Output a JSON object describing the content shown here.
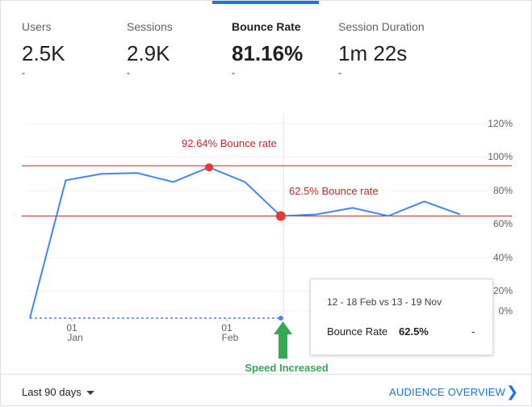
{
  "metrics": [
    {
      "label": "Users",
      "value": "2.5K",
      "delta": "-"
    },
    {
      "label": "Sessions",
      "value": "2.9K",
      "delta": "-"
    },
    {
      "label": "Bounce Rate",
      "value": "81.16%",
      "delta": "-"
    },
    {
      "label": "Session Duration",
      "value": "1m 22s",
      "delta": "-"
    }
  ],
  "active_metric": "Bounce Rate",
  "chart_data": {
    "type": "line",
    "y_ticks": [
      "120%",
      "100%",
      "80%",
      "60%",
      "40%",
      "20%",
      "0%"
    ],
    "ylim": [
      0,
      120
    ],
    "x_tick_labels": [
      {
        "day": "01",
        "month": "Jan"
      },
      {
        "day": "01",
        "month": "Feb"
      }
    ],
    "series": [
      {
        "values": [
          0,
          85,
          89,
          89.5,
          84,
          93,
          84,
          63,
          64,
          68,
          63,
          72,
          64
        ],
        "color": "#4285f4"
      },
      {
        "values": [
          0,
          0,
          0,
          0,
          0,
          0,
          0,
          0
        ],
        "color": "#4285f4",
        "dashed": true
      }
    ],
    "reference_lines": [
      {
        "value": 94,
        "color": "#c62828"
      },
      {
        "value": 63,
        "color": "#c62828"
      }
    ],
    "annotations": [
      {
        "text": "92.64% Bounce rate",
        "color": "#c62828"
      },
      {
        "text": "62.5% Bounce rate",
        "color": "#c62828"
      },
      {
        "text": "Speed Increased",
        "color": "#34a853"
      }
    ],
    "grid": true
  },
  "tooltip": {
    "range": "12 - 18 Feb vs 13 - 19 Nov",
    "metric_label": "Bounce Rate",
    "metric_value": "62.5%",
    "metric_delta": "-"
  },
  "footer": {
    "date_range": "Last 90 days",
    "link": "AUDIENCE OVERVIEW",
    "link_icon": "chevron-right-icon"
  }
}
